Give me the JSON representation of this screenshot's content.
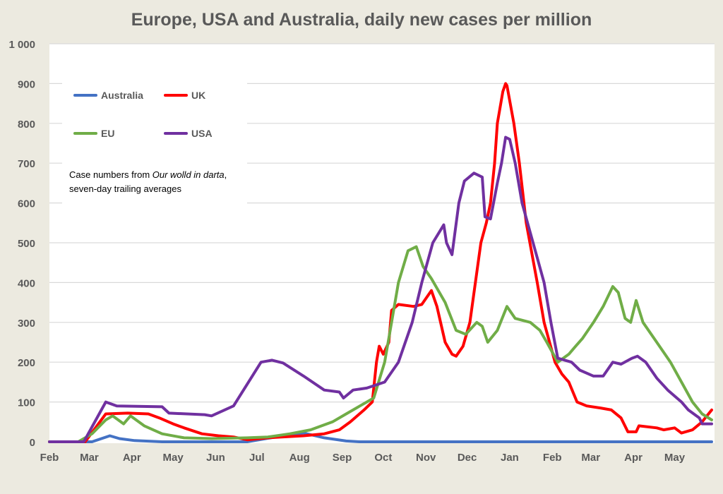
{
  "chart_data": {
    "type": "line",
    "title": "Europe, USA and Australia, daily new cases per million",
    "xlabel": "",
    "ylabel": "",
    "x_unit": "days since 1 Feb 2020",
    "xlim": [
      0,
      482
    ],
    "ylim": [
      0,
      1000
    ],
    "grid": true,
    "legend_placement": "top-left",
    "yticks": [
      {
        "value": 0,
        "label": "0"
      },
      {
        "value": 100,
        "label": "100"
      },
      {
        "value": 200,
        "label": "200"
      },
      {
        "value": 300,
        "label": "300"
      },
      {
        "value": 400,
        "label": "400"
      },
      {
        "value": 500,
        "label": "500"
      },
      {
        "value": 600,
        "label": "600"
      },
      {
        "value": 700,
        "label": "700"
      },
      {
        "value": 800,
        "label": "800"
      },
      {
        "value": 900,
        "label": "900"
      },
      {
        "value": 1000,
        "label": "1 000"
      }
    ],
    "xticks": [
      {
        "value": 0,
        "label": "Feb"
      },
      {
        "value": 29,
        "label": "Mar"
      },
      {
        "value": 60,
        "label": "Apr"
      },
      {
        "value": 90,
        "label": "May"
      },
      {
        "value": 121,
        "label": "Jun"
      },
      {
        "value": 151,
        "label": "Jul"
      },
      {
        "value": 182,
        "label": "Aug"
      },
      {
        "value": 213,
        "label": "Sep"
      },
      {
        "value": 243,
        "label": "Oct"
      },
      {
        "value": 274,
        "label": "Nov"
      },
      {
        "value": 304,
        "label": "Dec"
      },
      {
        "value": 335,
        "label": "Jan"
      },
      {
        "value": 366,
        "label": "Feb"
      },
      {
        "value": 394,
        "label": "Mar"
      },
      {
        "value": 425,
        "label": "Apr"
      },
      {
        "value": 455,
        "label": "May"
      }
    ],
    "annotation": {
      "line1_pre": "Case numbers from ",
      "line1_italic": "Our wolld in darta",
      "line1_post": ",",
      "line2": "seven-day trailing averages"
    },
    "series": [
      {
        "name": "Australia",
        "color": "#4472C4",
        "points": [
          [
            0,
            0
          ],
          [
            31,
            0
          ],
          [
            44,
            15
          ],
          [
            51,
            8
          ],
          [
            62,
            3
          ],
          [
            82,
            0
          ],
          [
            144,
            0
          ],
          [
            170,
            15
          ],
          [
            185,
            22
          ],
          [
            200,
            10
          ],
          [
            216,
            2
          ],
          [
            226,
            0
          ],
          [
            482,
            0
          ]
        ]
      },
      {
        "name": "UK",
        "color": "#FF0000",
        "points": [
          [
            0,
            0
          ],
          [
            26,
            0
          ],
          [
            41,
            70
          ],
          [
            57,
            72
          ],
          [
            72,
            70
          ],
          [
            80,
            60
          ],
          [
            90,
            45
          ],
          [
            98,
            35
          ],
          [
            111,
            20
          ],
          [
            123,
            15
          ],
          [
            134,
            12
          ],
          [
            144,
            5
          ],
          [
            159,
            10
          ],
          [
            185,
            15
          ],
          [
            200,
            20
          ],
          [
            211,
            30
          ],
          [
            219,
            50
          ],
          [
            229,
            80
          ],
          [
            235,
            100
          ],
          [
            238,
            200
          ],
          [
            240,
            240
          ],
          [
            243,
            220
          ],
          [
            247,
            250
          ],
          [
            249,
            330
          ],
          [
            254,
            345
          ],
          [
            265,
            340
          ],
          [
            271,
            345
          ],
          [
            278,
            380
          ],
          [
            282,
            340
          ],
          [
            288,
            250
          ],
          [
            293,
            220
          ],
          [
            296,
            215
          ],
          [
            301,
            240
          ],
          [
            306,
            300
          ],
          [
            314,
            500
          ],
          [
            318,
            550
          ],
          [
            321,
            600
          ],
          [
            324,
            700
          ],
          [
            326,
            800
          ],
          [
            330,
            880
          ],
          [
            332,
            900
          ],
          [
            333,
            895
          ],
          [
            338,
            800
          ],
          [
            342,
            700
          ],
          [
            347,
            550
          ],
          [
            355,
            400
          ],
          [
            360,
            300
          ],
          [
            368,
            200
          ],
          [
            373,
            170
          ],
          [
            378,
            150
          ],
          [
            384,
            100
          ],
          [
            391,
            90
          ],
          [
            401,
            85
          ],
          [
            409,
            80
          ],
          [
            416,
            60
          ],
          [
            421,
            25
          ],
          [
            427,
            25
          ],
          [
            429,
            40
          ],
          [
            442,
            35
          ],
          [
            447,
            30
          ],
          [
            455,
            35
          ],
          [
            460,
            22
          ],
          [
            468,
            30
          ],
          [
            475,
            50
          ],
          [
            482,
            80
          ]
        ]
      },
      {
        "name": "EU",
        "color": "#70AD47",
        "points": [
          [
            0,
            0
          ],
          [
            21,
            0
          ],
          [
            31,
            20
          ],
          [
            41,
            55
          ],
          [
            46,
            65
          ],
          [
            54,
            45
          ],
          [
            59,
            65
          ],
          [
            69,
            40
          ],
          [
            82,
            20
          ],
          [
            98,
            10
          ],
          [
            118,
            8
          ],
          [
            144,
            10
          ],
          [
            159,
            12
          ],
          [
            175,
            20
          ],
          [
            190,
            30
          ],
          [
            206,
            50
          ],
          [
            216,
            70
          ],
          [
            226,
            90
          ],
          [
            236,
            110
          ],
          [
            244,
            200
          ],
          [
            249,
            300
          ],
          [
            254,
            400
          ],
          [
            261,
            480
          ],
          [
            267,
            490
          ],
          [
            272,
            440
          ],
          [
            278,
            410
          ],
          [
            288,
            350
          ],
          [
            296,
            280
          ],
          [
            303,
            270
          ],
          [
            311,
            300
          ],
          [
            315,
            290
          ],
          [
            319,
            250
          ],
          [
            326,
            280
          ],
          [
            333,
            340
          ],
          [
            339,
            310
          ],
          [
            350,
            300
          ],
          [
            357,
            280
          ],
          [
            362,
            250
          ],
          [
            370,
            200
          ],
          [
            378,
            220
          ],
          [
            383,
            240
          ],
          [
            388,
            260
          ],
          [
            396,
            300
          ],
          [
            403,
            340
          ],
          [
            410,
            390
          ],
          [
            414,
            375
          ],
          [
            419,
            310
          ],
          [
            423,
            300
          ],
          [
            427,
            355
          ],
          [
            432,
            300
          ],
          [
            442,
            250
          ],
          [
            452,
            200
          ],
          [
            460,
            150
          ],
          [
            468,
            100
          ],
          [
            475,
            70
          ],
          [
            482,
            55
          ]
        ]
      },
      {
        "name": "USA",
        "color": "#7030A0",
        "points": [
          [
            0,
            0
          ],
          [
            25,
            0
          ],
          [
            41,
            100
          ],
          [
            49,
            90
          ],
          [
            82,
            88
          ],
          [
            87,
            72
          ],
          [
            113,
            68
          ],
          [
            118,
            65
          ],
          [
            134,
            90
          ],
          [
            154,
            200
          ],
          [
            162,
            205
          ],
          [
            170,
            198
          ],
          [
            185,
            165
          ],
          [
            200,
            130
          ],
          [
            211,
            125
          ],
          [
            214,
            110
          ],
          [
            221,
            130
          ],
          [
            231,
            135
          ],
          [
            244,
            150
          ],
          [
            254,
            200
          ],
          [
            264,
            300
          ],
          [
            271,
            400
          ],
          [
            279,
            500
          ],
          [
            287,
            545
          ],
          [
            289,
            500
          ],
          [
            293,
            470
          ],
          [
            298,
            600
          ],
          [
            302,
            655
          ],
          [
            309,
            675
          ],
          [
            315,
            665
          ],
          [
            317,
            565
          ],
          [
            321,
            560
          ],
          [
            326,
            650
          ],
          [
            329,
            700
          ],
          [
            332,
            765
          ],
          [
            335,
            760
          ],
          [
            339,
            700
          ],
          [
            344,
            600
          ],
          [
            352,
            500
          ],
          [
            360,
            400
          ],
          [
            365,
            300
          ],
          [
            370,
            210
          ],
          [
            380,
            200
          ],
          [
            386,
            180
          ],
          [
            396,
            165
          ],
          [
            403,
            165
          ],
          [
            410,
            200
          ],
          [
            416,
            195
          ],
          [
            424,
            210
          ],
          [
            428,
            215
          ],
          [
            434,
            200
          ],
          [
            442,
            160
          ],
          [
            450,
            130
          ],
          [
            460,
            100
          ],
          [
            465,
            80
          ],
          [
            473,
            60
          ],
          [
            475,
            45
          ],
          [
            482,
            45
          ]
        ]
      }
    ]
  }
}
